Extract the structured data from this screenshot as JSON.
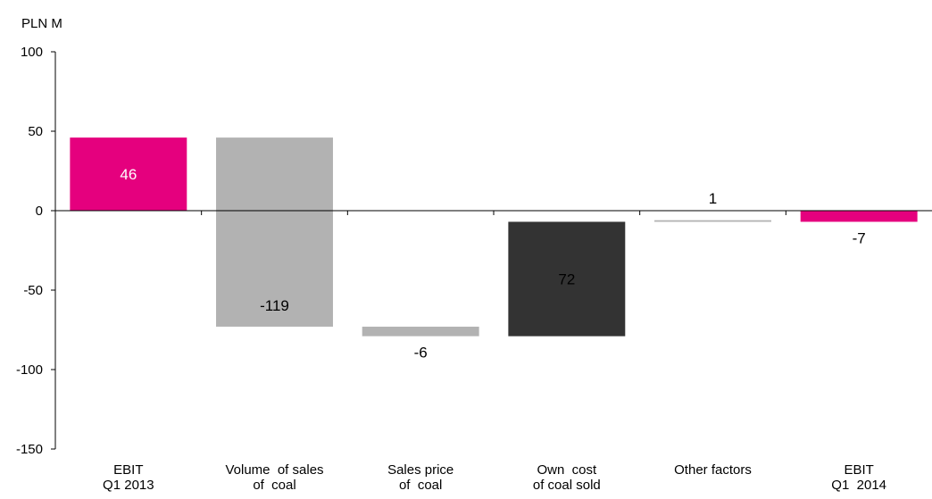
{
  "chart_data": {
    "type": "bar",
    "subtype": "waterfall",
    "ylabel": "PLN M",
    "ylim": [
      -150,
      100
    ],
    "yticks": [
      100,
      50,
      0,
      -50,
      -100,
      -150
    ],
    "grid": false,
    "legend": "none",
    "categories": [
      [
        "EBIT",
        "Q1 2013"
      ],
      [
        "Volume  of sales",
        "of  coal"
      ],
      [
        "Sales price",
        "of  coal"
      ],
      [
        "Own  cost",
        "of coal sold"
      ],
      [
        "Other factors"
      ],
      [
        "EBIT",
        "Q1  2014"
      ]
    ],
    "bars": [
      {
        "label": "46",
        "start": 0,
        "end": 46,
        "color": "#e5007e",
        "label_color": "#ffffff",
        "label_position": "inside"
      },
      {
        "label": "-119",
        "start": 46,
        "end": -73,
        "color": "#b2b2b2",
        "label_color": "#000000",
        "label_position": "inside-bottom"
      },
      {
        "label": "-6",
        "start": -73,
        "end": -79,
        "color": "#b2b2b2",
        "label_color": "#000000",
        "label_position": "below"
      },
      {
        "label": "72",
        "start": -79,
        "end": -7,
        "color": "#333333",
        "label_color": "#000000",
        "label_position": "inside"
      },
      {
        "label": "1",
        "start": -7,
        "end": -6,
        "color": "#b2b2b2",
        "label_color": "#000000",
        "label_position": "above-axis"
      },
      {
        "label": "-7",
        "start": 0,
        "end": -7,
        "color": "#e5007e",
        "label_color": "#000000",
        "label_position": "below"
      }
    ]
  }
}
